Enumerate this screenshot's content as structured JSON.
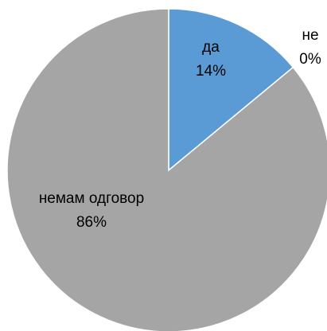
{
  "chart_data": {
    "type": "pie",
    "categories": [
      "да",
      "не",
      "немам одговор"
    ],
    "values": [
      14,
      0,
      86
    ],
    "value_labels": [
      "14%",
      "0%",
      "86%"
    ],
    "colors": [
      "#5b9bd5",
      "#ed7d31",
      "#a5a5a5"
    ]
  }
}
